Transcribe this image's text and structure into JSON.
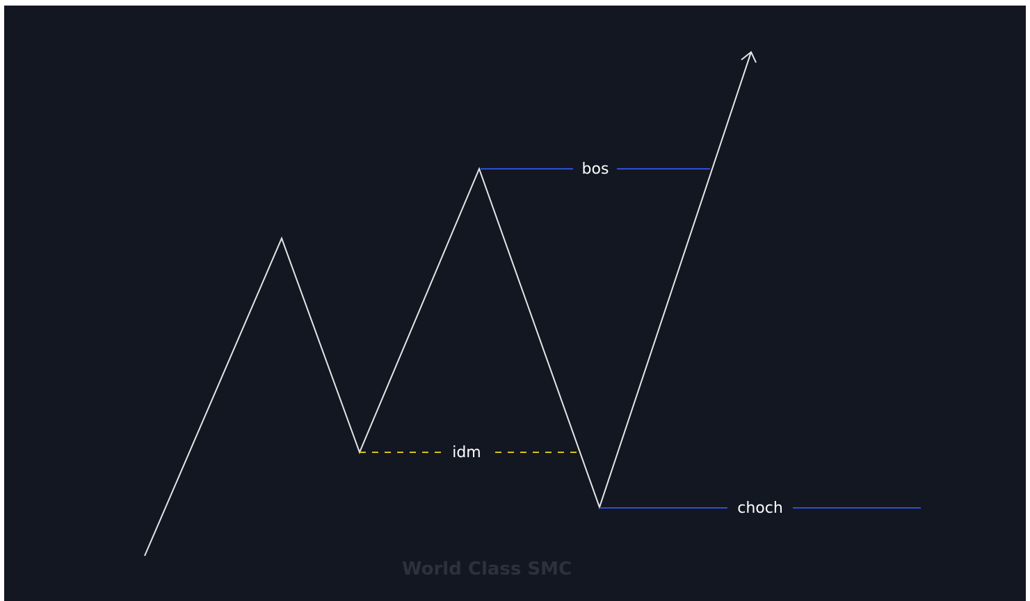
{
  "diagram": {
    "labels": {
      "bos": "bos",
      "idm": "idm",
      "choch": "choch"
    },
    "watermark": "World Class SMC",
    "colors": {
      "background": "#131722",
      "price_path": "#e6e6e6",
      "bos_line": "#2f4fd1",
      "choch_line": "#2f4fd1",
      "idm_line": "#d8c21a",
      "label_text": "#ffffff",
      "watermark_text": "#2c313d"
    },
    "icons": {
      "arrow": "arrow-up-icon"
    }
  }
}
